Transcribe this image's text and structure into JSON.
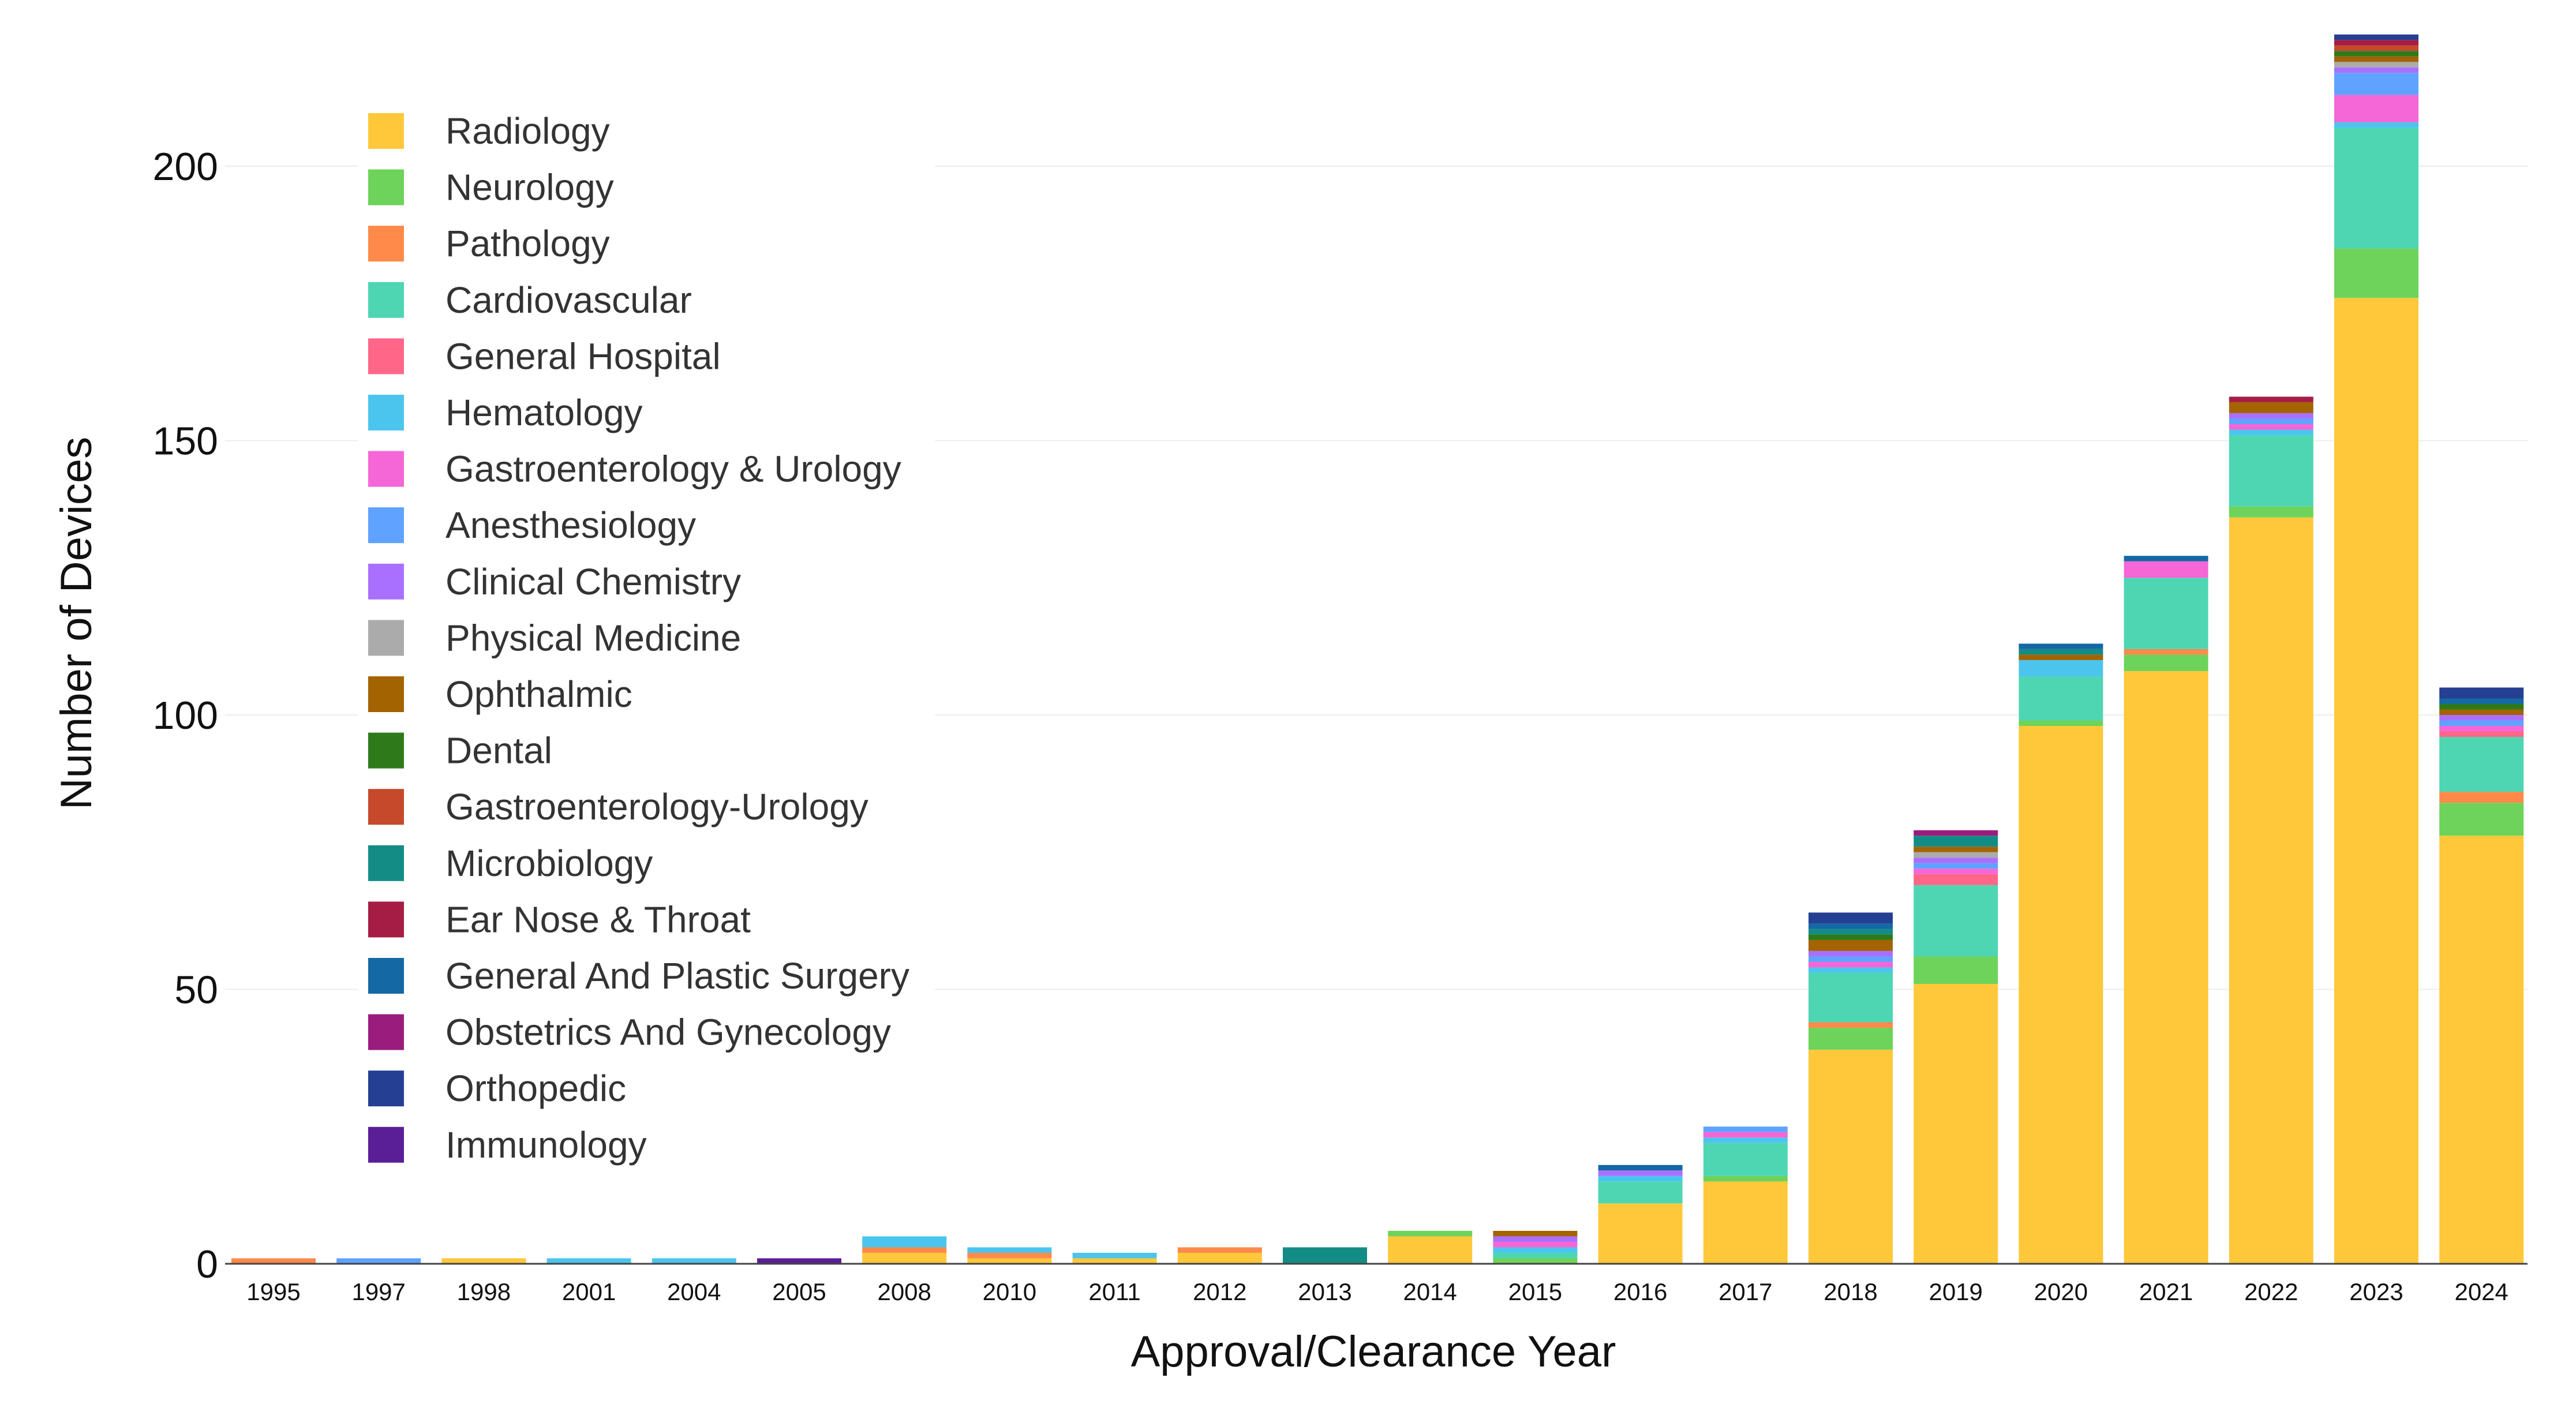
{
  "chart_data": {
    "type": "bar",
    "stacked": true,
    "title": "",
    "xlabel": "Approval/Clearance Year",
    "ylabel": "Number of Devices",
    "ylim": [
      0,
      225
    ],
    "yticks": [
      0,
      50,
      100,
      150,
      200
    ],
    "grid": true,
    "legend_position": "top-left",
    "categories": [
      "1995",
      "1997",
      "1998",
      "2001",
      "2004",
      "2005",
      "2008",
      "2010",
      "2011",
      "2012",
      "2013",
      "2014",
      "2015",
      "2016",
      "2017",
      "2018",
      "2019",
      "2020",
      "2021",
      "2022",
      "2023",
      "2024"
    ],
    "series": [
      {
        "name": "Radiology",
        "color": "#FFC83A",
        "values": [
          0,
          0,
          1,
          0,
          0,
          0,
          2,
          1,
          1,
          2,
          0,
          5,
          0,
          11,
          15,
          39,
          51,
          98,
          108,
          136,
          176,
          78
        ]
      },
      {
        "name": "Neurology",
        "color": "#6DD35A",
        "values": [
          0,
          0,
          0,
          0,
          0,
          0,
          0,
          0,
          0,
          0,
          0,
          1,
          1,
          0,
          1,
          4,
          5,
          1,
          3,
          2,
          9,
          6
        ]
      },
      {
        "name": "Pathology",
        "color": "#FF8A4A",
        "values": [
          1,
          0,
          0,
          0,
          0,
          0,
          1,
          1,
          0,
          1,
          0,
          0,
          0,
          0,
          0,
          1,
          0,
          0,
          1,
          0,
          0,
          2
        ]
      },
      {
        "name": "Cardiovascular",
        "color": "#4ED6B2",
        "values": [
          0,
          0,
          0,
          0,
          0,
          0,
          0,
          0,
          0,
          0,
          0,
          0,
          1,
          4,
          6,
          9,
          13,
          8,
          13,
          13,
          22,
          10
        ]
      },
      {
        "name": "General Hospital",
        "color": "#FF6688",
        "values": [
          0,
          0,
          0,
          0,
          0,
          0,
          0,
          0,
          0,
          0,
          0,
          0,
          0,
          0,
          0,
          0,
          2,
          0,
          0,
          0,
          0,
          1
        ]
      },
      {
        "name": "Hematology",
        "color": "#4CC5EE",
        "values": [
          0,
          0,
          0,
          1,
          1,
          0,
          2,
          1,
          1,
          0,
          0,
          0,
          1,
          1,
          1,
          1,
          0,
          3,
          0,
          1,
          1,
          0
        ]
      },
      {
        "name": "Gastroenterology & Urology",
        "color": "#F566D6",
        "values": [
          0,
          0,
          0,
          0,
          0,
          0,
          0,
          0,
          0,
          0,
          0,
          0,
          1,
          0,
          1,
          1,
          1,
          0,
          3,
          1,
          5,
          1
        ]
      },
      {
        "name": "Anesthesiology",
        "color": "#5FA2FF",
        "values": [
          0,
          1,
          0,
          0,
          0,
          0,
          0,
          0,
          0,
          0,
          0,
          0,
          0,
          0,
          1,
          1,
          1,
          0,
          0,
          1,
          4,
          1
        ]
      },
      {
        "name": "Clinical Chemistry",
        "color": "#A970FF",
        "values": [
          0,
          0,
          0,
          0,
          0,
          0,
          0,
          0,
          0,
          0,
          0,
          0,
          1,
          1,
          0,
          1,
          1,
          0,
          0,
          1,
          1,
          1
        ]
      },
      {
        "name": "Physical Medicine",
        "color": "#ABABAB",
        "values": [
          0,
          0,
          0,
          0,
          0,
          0,
          0,
          0,
          0,
          0,
          0,
          0,
          0,
          0,
          0,
          0,
          1,
          0,
          0,
          0,
          1,
          0
        ]
      },
      {
        "name": "Ophthalmic",
        "color": "#A36400",
        "values": [
          0,
          0,
          0,
          0,
          0,
          0,
          0,
          0,
          0,
          0,
          0,
          0,
          1,
          0,
          0,
          2,
          1,
          1,
          0,
          2,
          1,
          1
        ]
      },
      {
        "name": "Dental",
        "color": "#2E7A1A",
        "values": [
          0,
          0,
          0,
          0,
          0,
          0,
          0,
          0,
          0,
          0,
          0,
          0,
          0,
          0,
          0,
          1,
          0,
          0,
          0,
          0,
          1,
          1
        ]
      },
      {
        "name": "Gastroenterology-Urology",
        "color": "#C5492A",
        "values": [
          0,
          0,
          0,
          0,
          0,
          0,
          0,
          0,
          0,
          0,
          0,
          0,
          0,
          0,
          0,
          0,
          0,
          0,
          0,
          0,
          1,
          0
        ]
      },
      {
        "name": "Microbiology",
        "color": "#138C86",
        "values": [
          0,
          0,
          0,
          0,
          0,
          0,
          0,
          0,
          0,
          0,
          3,
          0,
          0,
          0,
          0,
          1,
          2,
          1,
          0,
          0,
          0,
          0
        ]
      },
      {
        "name": "Ear Nose & Throat",
        "color": "#A51D45",
        "values": [
          0,
          0,
          0,
          0,
          0,
          0,
          0,
          0,
          0,
          0,
          0,
          0,
          0,
          0,
          0,
          0,
          0,
          0,
          0,
          1,
          1,
          0
        ]
      },
      {
        "name": "General And Plastic Surgery",
        "color": "#1468A4",
        "values": [
          0,
          0,
          0,
          0,
          0,
          0,
          0,
          0,
          0,
          0,
          0,
          0,
          0,
          1,
          0,
          1,
          0,
          1,
          1,
          0,
          0,
          1
        ]
      },
      {
        "name": "Obstetrics And Gynecology",
        "color": "#9A1D7E",
        "values": [
          0,
          0,
          0,
          0,
          0,
          0,
          0,
          0,
          0,
          0,
          0,
          0,
          0,
          0,
          0,
          0,
          1,
          0,
          0,
          0,
          0,
          0
        ]
      },
      {
        "name": "Orthopedic",
        "color": "#253F93",
        "values": [
          0,
          0,
          0,
          0,
          0,
          0,
          0,
          0,
          0,
          0,
          0,
          0,
          0,
          0,
          0,
          2,
          0,
          0,
          0,
          0,
          1,
          2
        ]
      },
      {
        "name": "Immunology",
        "color": "#5A1E97",
        "values": [
          0,
          0,
          0,
          0,
          0,
          1,
          0,
          0,
          0,
          0,
          0,
          0,
          0,
          0,
          0,
          0,
          0,
          0,
          0,
          0,
          0,
          0
        ]
      }
    ]
  }
}
